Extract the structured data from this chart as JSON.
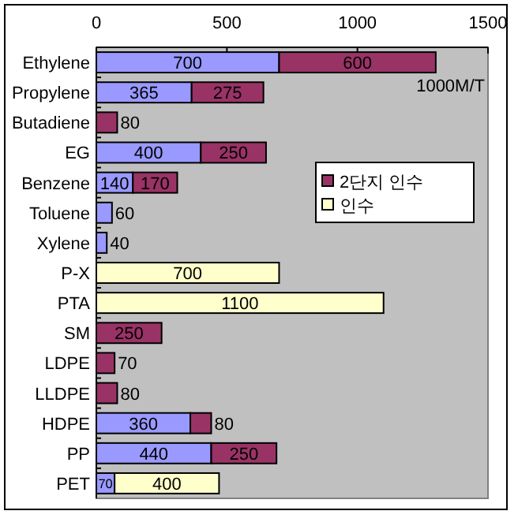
{
  "chart_data": {
    "type": "bar",
    "orientation": "horizontal",
    "stacked": true,
    "data_labels": true,
    "categories": [
      "Ethylene",
      "Propylene",
      "Butadiene",
      "EG",
      "Benzene",
      "Toluene",
      "Xylene",
      "P-X",
      "PTA",
      "SM",
      "LDPE",
      "LLDPE",
      "HDPE",
      "PP",
      "PET"
    ],
    "series": [
      {
        "color": "#9999ff",
        "values": [
          700,
          365,
          null,
          400,
          140,
          60,
          40,
          null,
          null,
          null,
          null,
          null,
          360,
          440,
          70
        ]
      },
      {
        "name": "2단지 인수",
        "color": "#993366",
        "values": [
          600,
          275,
          80,
          250,
          170,
          null,
          null,
          null,
          null,
          250,
          70,
          80,
          80,
          250,
          null
        ]
      },
      {
        "name": "인수",
        "color": "#ffffcc",
        "values": [
          null,
          null,
          null,
          null,
          null,
          null,
          null,
          700,
          1100,
          null,
          null,
          null,
          null,
          null,
          400
        ]
      }
    ],
    "xlim": [
      0,
      1500
    ],
    "xticks": [
      0,
      500,
      1000,
      1500
    ],
    "legend": "right",
    "annotations": [
      "1000M/T"
    ]
  }
}
